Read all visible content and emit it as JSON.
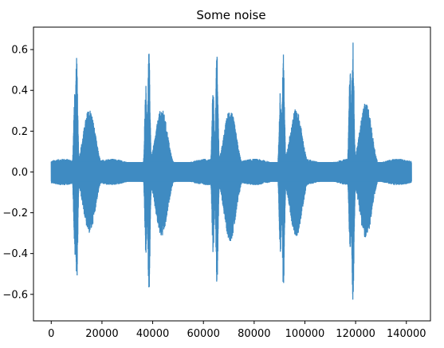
{
  "chart_data": {
    "type": "line",
    "title": "Some noise",
    "xlabel": "",
    "ylabel": "",
    "xlim": [
      -7000,
      149500
    ],
    "ylim": [
      -0.73,
      0.71
    ],
    "xticks": [
      0,
      20000,
      40000,
      60000,
      80000,
      100000,
      120000,
      140000
    ],
    "xtick_labels": [
      "0",
      "20000",
      "40000",
      "60000",
      "80000",
      "100000",
      "120000",
      "140000"
    ],
    "yticks": [
      -0.6,
      -0.4,
      -0.2,
      0.0,
      0.2,
      0.4,
      0.6
    ],
    "ytick_labels": [
      "−0.6",
      "−0.4",
      "−0.2",
      "0.0",
      "0.2",
      "0.4",
      "0.6"
    ],
    "grid": false,
    "series": [
      {
        "color": "#3f8bc2",
        "x_range": [
          0,
          142000
        ],
        "baseline_amplitude": 0.065,
        "bursts": [
          {
            "x": 9300,
            "pos": 0.4,
            "neg": -0.41
          },
          {
            "x": 10000,
            "pos": 0.56,
            "neg": -0.55
          },
          {
            "x": 15000,
            "pos": 0.31,
            "neg": -0.3
          },
          {
            "x": 37300,
            "pos": 0.43,
            "neg": -0.41
          },
          {
            "x": 38500,
            "pos": 0.59,
            "neg": -0.59
          },
          {
            "x": 43500,
            "pos": 0.31,
            "neg": -0.32
          },
          {
            "x": 63800,
            "pos": 0.41,
            "neg": -0.4
          },
          {
            "x": 65300,
            "pos": 0.59,
            "neg": -0.56
          },
          {
            "x": 70500,
            "pos": 0.31,
            "neg": -0.34
          },
          {
            "x": 90300,
            "pos": 0.4,
            "neg": -0.4
          },
          {
            "x": 91500,
            "pos": 0.58,
            "neg": -0.57
          },
          {
            "x": 96500,
            "pos": 0.31,
            "neg": -0.32
          },
          {
            "x": 117800,
            "pos": 0.51,
            "neg": -0.4
          },
          {
            "x": 118900,
            "pos": 0.65,
            "neg": -0.67
          },
          {
            "x": 124000,
            "pos": 0.34,
            "neg": -0.33
          }
        ]
      }
    ]
  }
}
